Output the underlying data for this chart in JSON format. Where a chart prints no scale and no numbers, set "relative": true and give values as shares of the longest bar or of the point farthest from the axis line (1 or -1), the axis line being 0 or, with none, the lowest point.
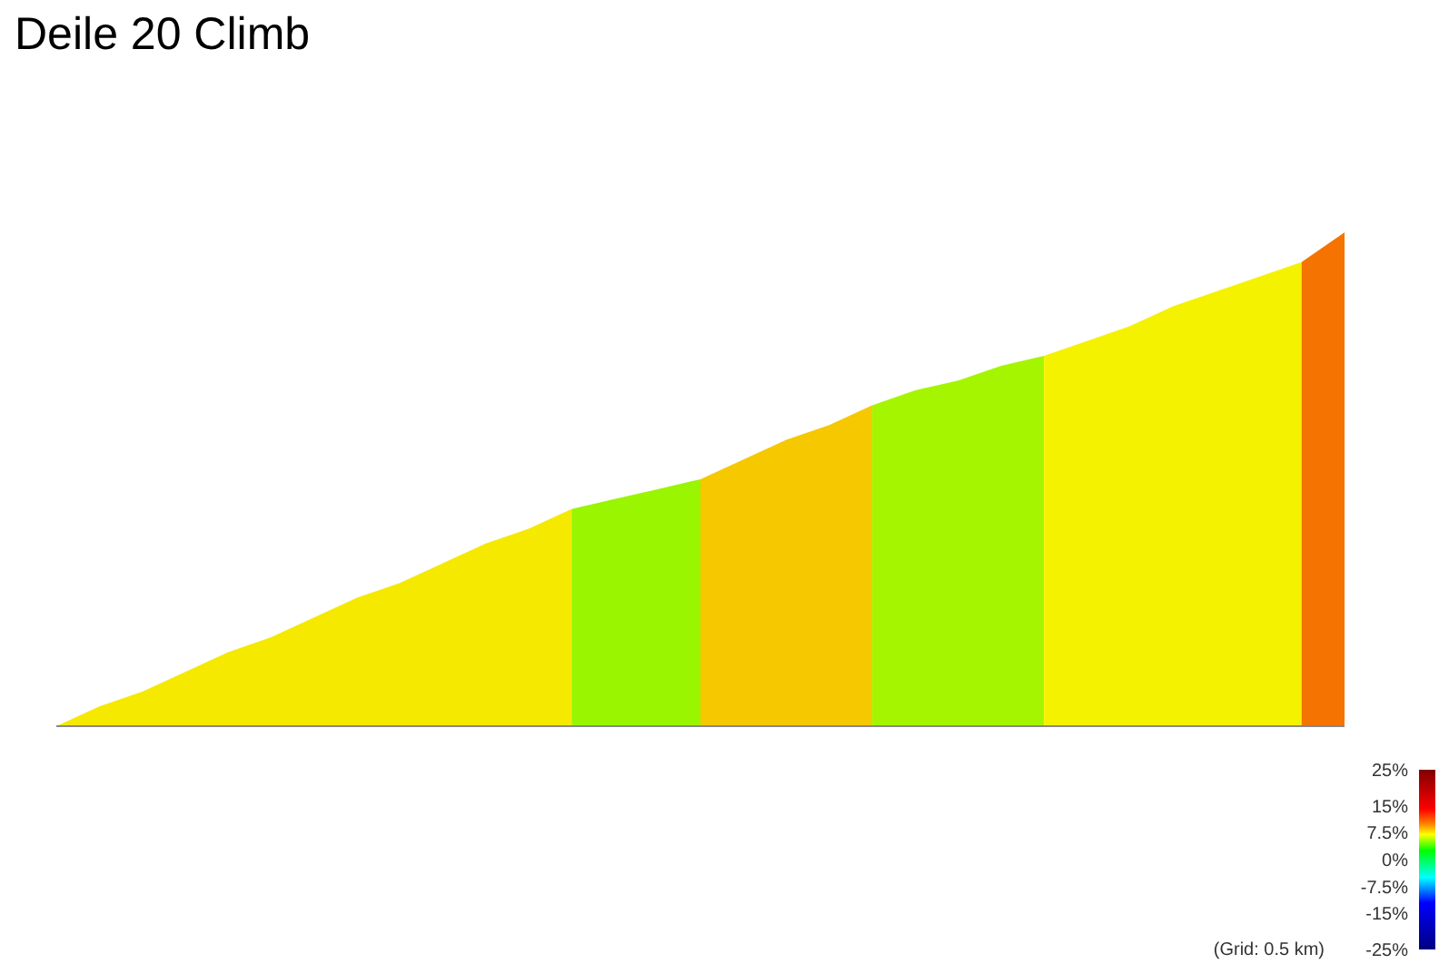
{
  "chart_data": {
    "type": "area",
    "title": "Deile 20 Climb",
    "relative": true,
    "categories": [
      null,
      null,
      null,
      null,
      null,
      null,
      null,
      null,
      null,
      null,
      null,
      null,
      null,
      null,
      null,
      null,
      null,
      null,
      null,
      null,
      null,
      null,
      null,
      null,
      null,
      null,
      null,
      null,
      null,
      null,
      null
    ],
    "series": [
      {
        "color": "#f5e900",
        "values": [
          0,
          0.04,
          0.07,
          0.11,
          0.15,
          0.18,
          0.22,
          0.26,
          0.29,
          0.33,
          0.37,
          0.4,
          0.44,
          null,
          null,
          null,
          null,
          null,
          null,
          null,
          null,
          null,
          null,
          null,
          null,
          null,
          null,
          null,
          null,
          null,
          null
        ]
      },
      {
        "color": "#99f500",
        "values": [
          null,
          null,
          null,
          null,
          null,
          null,
          null,
          null,
          null,
          null,
          null,
          null,
          0.44,
          0.46,
          0.48,
          0.5,
          null,
          null,
          null,
          null,
          null,
          null,
          null,
          null,
          null,
          null,
          null,
          null,
          null,
          null,
          null
        ]
      },
      {
        "color": "#f5c800",
        "values": [
          null,
          null,
          null,
          null,
          null,
          null,
          null,
          null,
          null,
          null,
          null,
          null,
          null,
          null,
          null,
          0.5,
          0.54,
          0.58,
          0.61,
          0.65,
          null,
          null,
          null,
          null,
          null,
          null,
          null,
          null,
          null,
          null,
          null
        ]
      },
      {
        "color": "#a6f500",
        "values": [
          null,
          null,
          null,
          null,
          null,
          null,
          null,
          null,
          null,
          null,
          null,
          null,
          null,
          null,
          null,
          null,
          null,
          null,
          null,
          0.65,
          0.68,
          0.7,
          0.73,
          0.75,
          null,
          null,
          null,
          null,
          null,
          null,
          null
        ]
      },
      {
        "color": "#f5f200",
        "values": [
          null,
          null,
          null,
          null,
          null,
          null,
          null,
          null,
          null,
          null,
          null,
          null,
          null,
          null,
          null,
          null,
          null,
          null,
          null,
          null,
          null,
          null,
          null,
          0.75,
          0.78,
          0.81,
          0.85,
          0.88,
          0.91,
          0.94,
          null
        ]
      },
      {
        "color": "#f57300",
        "values": [
          null,
          null,
          null,
          null,
          null,
          null,
          null,
          null,
          null,
          null,
          null,
          null,
          null,
          null,
          null,
          null,
          null,
          null,
          null,
          null,
          null,
          null,
          null,
          null,
          null,
          null,
          null,
          null,
          null,
          0.94,
          1
        ]
      }
    ],
    "clim": [
      -25,
      25
    ],
    "cticks": [
      {
        "value": 25,
        "label": "25%"
      },
      {
        "value": 15,
        "label": "15%"
      },
      {
        "value": 7.5,
        "label": "7.5%"
      },
      {
        "value": 0,
        "label": "0%"
      },
      {
        "value": -7.5,
        "label": "-7.5%"
      },
      {
        "value": -15,
        "label": "-15%"
      },
      {
        "value": -25,
        "label": "-25%"
      }
    ],
    "annotations": [
      "(Grid: 0.5 km)"
    ]
  }
}
